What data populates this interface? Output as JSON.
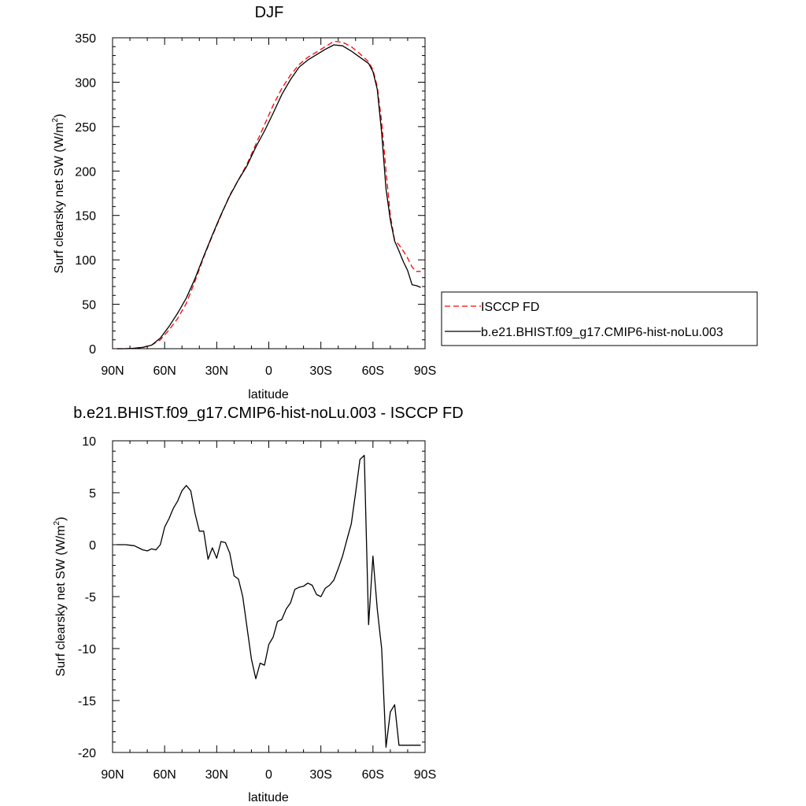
{
  "chart_data": [
    {
      "type": "line",
      "title": "DJF",
      "xlabel": "latitude",
      "ylabel": "Surf clearsky net SW (W/m",
      "ylabel_sup": "2",
      "ylabel_close": ")",
      "xlim": [
        -90,
        90
      ],
      "ylim": [
        0,
        350
      ],
      "xticks": [
        -90,
        -60,
        -30,
        0,
        30,
        60,
        90
      ],
      "xtick_labels": [
        "90N",
        "60N",
        "30N",
        "0",
        "30S",
        "60S",
        "90S"
      ],
      "yticks": [
        0,
        50,
        100,
        150,
        200,
        250,
        300,
        350
      ],
      "ytick_labels": [
        "0",
        "50",
        "100",
        "150",
        "200",
        "250",
        "300",
        "350"
      ],
      "grid": false,
      "legend_position": "right",
      "series": [
        {
          "name": "ISCCP FD",
          "color": "#ff0000",
          "dash": "dashed",
          "x": [
            -87.5,
            -82.5,
            -77.5,
            -72.5,
            -67.5,
            -62.5,
            -57.5,
            -52.5,
            -47.5,
            -42.5,
            -37.5,
            -32.5,
            -27.5,
            -22.5,
            -17.5,
            -12.5,
            -7.5,
            -2.5,
            2.5,
            7.5,
            12.5,
            17.5,
            22.5,
            27.5,
            32.5,
            37.5,
            42.5,
            47.5,
            52.5,
            57.5,
            60,
            62.5,
            65,
            67.5,
            70,
            72.5,
            75,
            77.5,
            80,
            82.5,
            85,
            87.5
          ],
          "y": [
            0,
            0,
            0.5,
            1.5,
            4,
            10,
            21,
            34,
            51,
            76,
            103,
            127,
            150,
            173,
            190,
            208,
            230,
            252,
            274,
            293,
            308,
            320,
            328,
            334,
            340,
            346,
            345,
            340,
            332,
            323,
            314,
            295,
            255,
            200,
            150,
            122,
            117,
            110,
            102,
            92,
            87,
            87
          ]
        },
        {
          "name": "b.e21.BHIST.f09_g17.CMIP6-hist-noLu.003",
          "color": "#000000",
          "dash": "solid",
          "x": [
            -87.5,
            -82.5,
            -77.5,
            -72.5,
            -67.5,
            -62.5,
            -57.5,
            -52.5,
            -47.5,
            -42.5,
            -37.5,
            -32.5,
            -27.5,
            -22.5,
            -17.5,
            -12.5,
            -7.5,
            -2.5,
            2.5,
            7.5,
            12.5,
            17.5,
            22.5,
            27.5,
            32.5,
            37.5,
            42.5,
            47.5,
            52.5,
            57.5,
            60,
            62.5,
            65,
            67.5,
            70,
            72.5,
            75,
            77.5,
            80,
            82.5,
            85,
            87.5
          ],
          "y": [
            0,
            0,
            0.5,
            1.5,
            4,
            12,
            25,
            40,
            57,
            79,
            104,
            128,
            151,
            172,
            190,
            206,
            227,
            245,
            265,
            286,
            303,
            317,
            325,
            331,
            337,
            342,
            341,
            335,
            328,
            321,
            312,
            292,
            243,
            180,
            145,
            121,
            110,
            98,
            88,
            72,
            71,
            69
          ]
        }
      ]
    },
    {
      "type": "line",
      "title": "b.e21.BHIST.f09_g17.CMIP6-hist-noLu.003 - ISCCP FD",
      "xlabel": "latitude",
      "ylabel": "Surf clearsky net SW (W/m",
      "ylabel_sup": "2",
      "ylabel_close": ")",
      "xlim": [
        -90,
        90
      ],
      "ylim": [
        -20,
        10
      ],
      "xticks": [
        -90,
        -60,
        -30,
        0,
        30,
        60,
        90
      ],
      "xtick_labels": [
        "90N",
        "60N",
        "30N",
        "0",
        "30S",
        "60S",
        "90S"
      ],
      "yticks": [
        -20,
        -15,
        -10,
        -5,
        0,
        5,
        10
      ],
      "ytick_labels": [
        "-20",
        "-15",
        "-10",
        "-5",
        "0",
        "5",
        "10"
      ],
      "grid": false,
      "series": [
        {
          "color": "#000000",
          "dash": "solid",
          "x": [
            -87.5,
            -82.5,
            -80,
            -77.5,
            -75,
            -72.5,
            -70,
            -67.5,
            -65,
            -62.5,
            -60,
            -57.5,
            -55,
            -52.5,
            -50,
            -47.5,
            -45,
            -42.5,
            -40,
            -37.5,
            -35,
            -32.5,
            -30,
            -27.5,
            -25,
            -22.5,
            -20,
            -17.5,
            -15,
            -12.5,
            -10,
            -7.5,
            -5,
            -2.5,
            0,
            2.5,
            5,
            7.5,
            10,
            12.5,
            15,
            17.5,
            20,
            22.5,
            25,
            27.5,
            30,
            32.5,
            35,
            37.5,
            40,
            42.5,
            45,
            47.5,
            50,
            52.5,
            55,
            57.5,
            60,
            62.5,
            65,
            67.5,
            70,
            72.5,
            75,
            77.5,
            80,
            82.5,
            85,
            87.5
          ],
          "y": [
            0,
            0,
            -0.05,
            -0.1,
            -0.3,
            -0.5,
            -0.6,
            -0.4,
            -0.5,
            0,
            1.7,
            2.5,
            3.5,
            4.2,
            5.2,
            5.7,
            5.2,
            3,
            1.3,
            1.3,
            -1.4,
            -0.3,
            -1.3,
            0.3,
            0.2,
            -0.8,
            -3,
            -3.3,
            -5,
            -8,
            -11,
            -12.9,
            -11.4,
            -11.6,
            -9.6,
            -8.9,
            -7.4,
            -7.2,
            -6.2,
            -5.6,
            -4.3,
            -4.1,
            -4.0,
            -3.7,
            -3.9,
            -4.8,
            -5,
            -4.2,
            -3.9,
            -3.4,
            -2.3,
            -1.1,
            0.5,
            2,
            5,
            8.2,
            8.6,
            -7.7,
            -1.1,
            -6.2,
            -10,
            -19.5,
            -16.1,
            -15.4,
            -19.3,
            -19.3,
            -19.3,
            -19.3,
            -19.3,
            -19.3
          ]
        }
      ]
    }
  ]
}
